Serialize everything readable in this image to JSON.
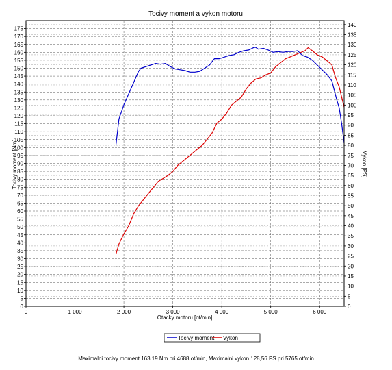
{
  "chart_data": {
    "type": "line",
    "title": "Tocivy moment a vykon motoru",
    "xlabel": "Otacky motoru [ot/min]",
    "ylabel_left": "Tocivy moment [Nm]",
    "ylabel_right": "Vykon [PS]",
    "xlim": [
      0,
      6500
    ],
    "ylim_left": [
      0,
      180
    ],
    "ylim_right": [
      0,
      142
    ],
    "x_ticks": [
      0,
      1000,
      2000,
      3000,
      4000,
      5000,
      6000
    ],
    "x_tick_labels": [
      "0",
      "1 000",
      "2 000",
      "3 000",
      "4 000",
      "5 000",
      "6 000"
    ],
    "y_left_ticks": [
      0,
      5,
      10,
      15,
      20,
      25,
      30,
      35,
      40,
      45,
      50,
      55,
      60,
      65,
      70,
      75,
      80,
      85,
      90,
      95,
      100,
      105,
      110,
      115,
      120,
      125,
      130,
      135,
      140,
      145,
      150,
      155,
      160,
      165,
      170,
      175
    ],
    "y_right_ticks": [
      0,
      5,
      10,
      15,
      20,
      25,
      30,
      35,
      40,
      45,
      50,
      55,
      60,
      65,
      70,
      75,
      80,
      85,
      90,
      95,
      100,
      105,
      110,
      115,
      120,
      125,
      130,
      135,
      140
    ],
    "grid": true,
    "legend_position": "bottom-center",
    "series": [
      {
        "name": "Tocivy moment",
        "axis": "left",
        "color": "#0000cc",
        "x": [
          1840,
          1900,
          2000,
          2100,
          2200,
          2300,
          2350,
          2450,
          2550,
          2650,
          2750,
          2850,
          2950,
          3050,
          3150,
          3250,
          3350,
          3450,
          3550,
          3650,
          3750,
          3850,
          3950,
          4050,
          4150,
          4250,
          4350,
          4450,
          4550,
          4650,
          4688,
          4750,
          4850,
          4950,
          5050,
          5150,
          5250,
          5350,
          5450,
          5550,
          5650,
          5750,
          5850,
          5950,
          6050,
          6150,
          6250,
          6350,
          6400,
          6450,
          6500
        ],
        "y": [
          102,
          118,
          127,
          134,
          141,
          148,
          150,
          151,
          152,
          153,
          152.5,
          153,
          151,
          149.5,
          149,
          148.5,
          147.5,
          147.5,
          148,
          150,
          152,
          156,
          156,
          157,
          158,
          158.5,
          160,
          161,
          161.5,
          163,
          163.19,
          162,
          162.5,
          161.5,
          160,
          160.5,
          160,
          160.5,
          160.5,
          161,
          158,
          157,
          155,
          152,
          149,
          146,
          142,
          130,
          125,
          115,
          103
        ]
      },
      {
        "name": "Vykon",
        "axis": "right",
        "color": "#dd0000",
        "x": [
          1840,
          1900,
          2000,
          2100,
          2200,
          2300,
          2400,
          2500,
          2600,
          2700,
          2800,
          2900,
          3000,
          3100,
          3200,
          3300,
          3400,
          3500,
          3600,
          3700,
          3800,
          3900,
          4000,
          4100,
          4200,
          4300,
          4400,
          4500,
          4600,
          4700,
          4800,
          4900,
          5000,
          5100,
          5200,
          5300,
          5400,
          5500,
          5600,
          5700,
          5765,
          5850,
          5950,
          6050,
          6150,
          6250,
          6320,
          6400,
          6450,
          6500
        ],
        "y": [
          26,
          31,
          36,
          40,
          46,
          50,
          53,
          56,
          59,
          62,
          63.5,
          65,
          67,
          70,
          72,
          74,
          76,
          78,
          80,
          83,
          86,
          91,
          93,
          96,
          100,
          102,
          104,
          108,
          111,
          113,
          113.5,
          115,
          116,
          119,
          121,
          123,
          124,
          125,
          126,
          127,
          128.56,
          127,
          125,
          124,
          122,
          120,
          114,
          109,
          104,
          99
        ]
      }
    ],
    "footer": "Maximalni tocivy moment 163,19 Nm pri 4688 ot/min,  Maximalni vykon 128,56 PS pri 5765 ot/min"
  }
}
